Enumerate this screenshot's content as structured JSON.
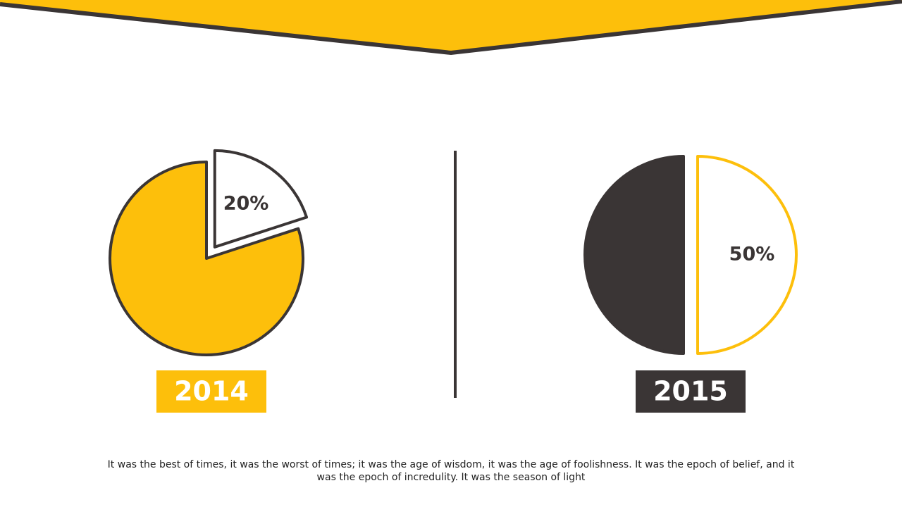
{
  "chart_data": [
    {
      "type": "pie",
      "title": "2014",
      "title_color": "#fdbf0b",
      "values": [
        20,
        80
      ],
      "value_labels": [
        "20%",
        null
      ],
      "colors": [
        "#ffffff",
        "#fdbf0b"
      ],
      "edge_colors": [
        "#3a3535",
        "#3a3535"
      ],
      "explode": [
        true,
        false
      ]
    },
    {
      "type": "pie",
      "title": "2015",
      "title_color": "#3a3535",
      "values": [
        50,
        50
      ],
      "value_labels": [
        "50%",
        null
      ],
      "colors": [
        "#ffffff",
        "#3a3535"
      ],
      "edge_colors": [
        "#fdbf0b",
        "#3a3535"
      ],
      "explode": [
        true,
        false
      ]
    }
  ],
  "footer": "It was the best of times, it was the worst of times; it was the age of wisdom, it was the age of foolishness. It was the epoch of belief, and it was the epoch of incredulity. It was the season of light"
}
